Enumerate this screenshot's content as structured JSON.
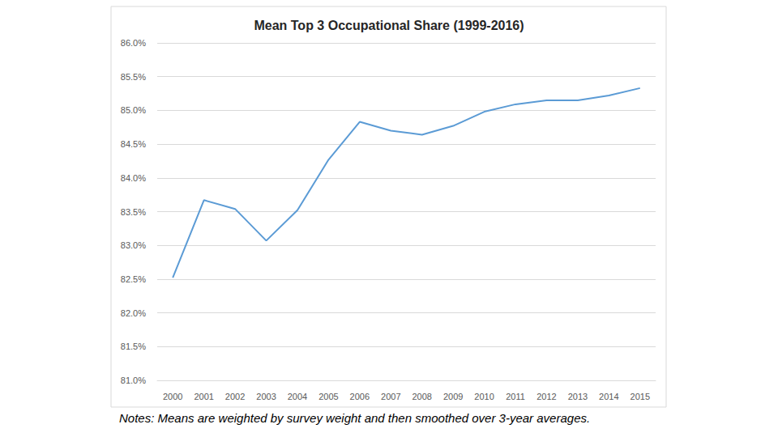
{
  "chart_data": {
    "type": "line",
    "title": "Mean Top 3 Occupational Share (1999-2016)",
    "annotation": "Notes: Means are weighted by survey weight and then smoothed over 3-year averages.",
    "categories": [
      "2000",
      "2001",
      "2002",
      "2003",
      "2004",
      "2005",
      "2006",
      "2007",
      "2008",
      "2009",
      "2010",
      "2011",
      "2012",
      "2013",
      "2014",
      "2015"
    ],
    "values": [
      82.52,
      83.67,
      83.54,
      83.07,
      83.52,
      84.27,
      84.83,
      84.7,
      84.64,
      84.77,
      84.98,
      85.09,
      85.15,
      85.15,
      85.22,
      85.33
    ],
    "color": "#5b9bd5",
    "ylim": [
      81,
      86
    ],
    "yticks": [
      {
        "value": 81,
        "label": "81.0%"
      },
      {
        "value": 81.5,
        "label": "81.5%"
      },
      {
        "value": 82,
        "label": "82.0%"
      },
      {
        "value": 82.5,
        "label": "82.5%"
      },
      {
        "value": 83,
        "label": "83.0%"
      },
      {
        "value": 83.5,
        "label": "83.5%"
      },
      {
        "value": 84,
        "label": "84.0%"
      },
      {
        "value": 84.5,
        "label": "84.5%"
      },
      {
        "value": 85,
        "label": "85.0%"
      },
      {
        "value": 85.5,
        "label": "85.5%"
      },
      {
        "value": 86,
        "label": "86.0%"
      }
    ],
    "grid": true
  }
}
